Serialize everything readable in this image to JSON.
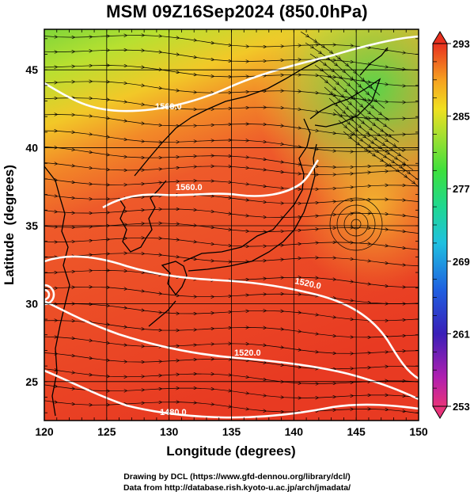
{
  "title": "MSM 09Z16Sep2024 (850.0hPa)",
  "axes": {
    "xlabel": "Longitude (degrees)",
    "ylabel": "Latitude  (degrees)",
    "x_ticks": [
      "120",
      "125",
      "130",
      "135",
      "140",
      "145",
      "150"
    ],
    "y_ticks": [
      "25",
      "30",
      "35",
      "40",
      "45"
    ],
    "xlim": [
      120,
      150
    ],
    "ylim": [
      22.5,
      47.6
    ]
  },
  "colorbar": {
    "ticks": [
      "293",
      "285",
      "277",
      "269",
      "261",
      "253"
    ],
    "range": [
      253,
      293
    ],
    "colors": [
      "#e8337a",
      "#9b1fb0",
      "#2a1fb8",
      "#1f6fe0",
      "#1fb8d8",
      "#1fd890",
      "#3de040",
      "#a8e030",
      "#f0e020",
      "#f6a020",
      "#f05a20",
      "#e8301f"
    ]
  },
  "contours": [
    {
      "label": "1560.0"
    },
    {
      "label": "1560.0"
    },
    {
      "label": "1520.0"
    },
    {
      "label": "1520.0"
    },
    {
      "label": "1480.0"
    }
  ],
  "credits": {
    "line1": "Drawing by DCL (https://www.gfd-dennou.org/library/dcl/)",
    "line2": "Data from http://database.rish.kyoto-u.ac.jp/arch/jmadata/"
  }
}
